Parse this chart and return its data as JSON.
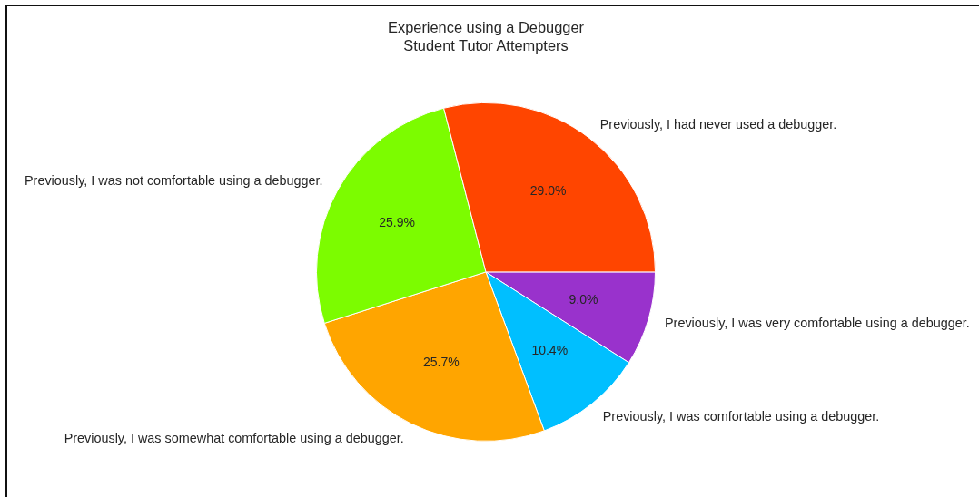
{
  "chart_data": {
    "type": "pie",
    "title": "Experience using a Debugger\nStudent Tutor Attempters",
    "categories": [
      "Previously, I was very comfortable using a debugger.",
      "Previously, I was comfortable using a debugger.",
      "Previously, I was somewhat comfortable using a debugger.",
      "Previously, I was not comfortable using a debugger.",
      "Previously, I had never used a debugger."
    ],
    "values": [
      9.0,
      10.4,
      25.7,
      25.9,
      29.0
    ],
    "colors": [
      "#9932cc",
      "#00bfff",
      "#ffa500",
      "#7cfc00",
      "#ff4500"
    ],
    "value_labels": [
      "9.0%",
      "10.4%",
      "25.7%",
      "25.9%",
      "29.0%"
    ]
  }
}
